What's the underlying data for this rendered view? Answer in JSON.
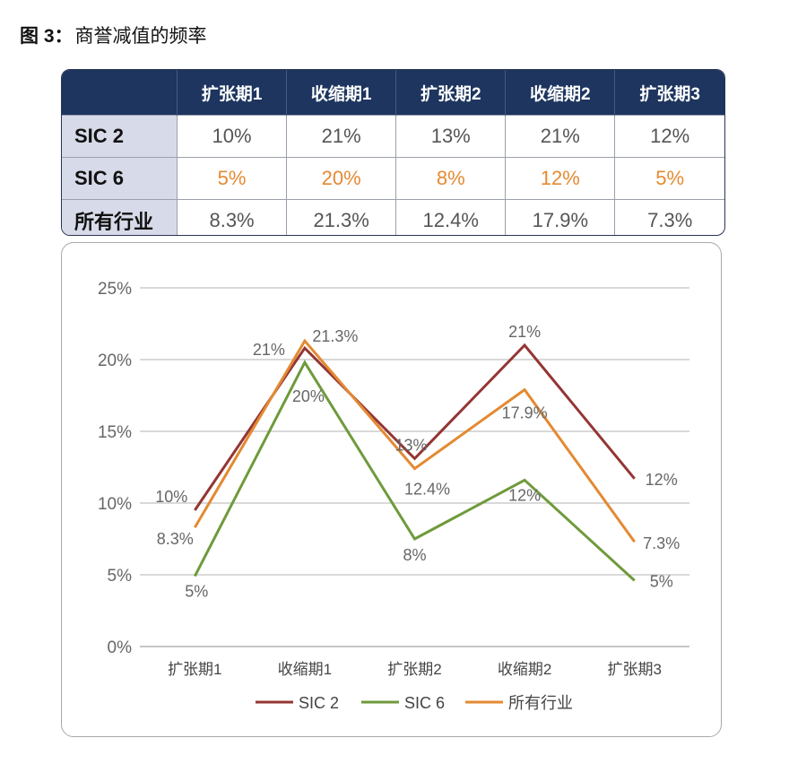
{
  "figure": {
    "title_prefix": "图 3：",
    "title_text": "商誉减值的频率"
  },
  "table": {
    "corner": "",
    "columns": [
      "扩张期1",
      "收缩期1",
      "扩张期2",
      "收缩期2",
      "扩张期3"
    ],
    "rows": [
      {
        "label": "SIC 2",
        "values": [
          "10%",
          "21%",
          "13%",
          "21%",
          "12%"
        ]
      },
      {
        "label": "SIC 6",
        "values": [
          "5%",
          "20%",
          "8%",
          "12%",
          "5%"
        ]
      },
      {
        "label": "所有行业",
        "values": [
          "8.3%",
          "21.3%",
          "12.4%",
          "17.9%",
          "7.3%"
        ]
      }
    ]
  },
  "chart_data": {
    "type": "line",
    "categories": [
      "扩张期1",
      "收缩期1",
      "扩张期2",
      "收缩期2",
      "扩张期3"
    ],
    "ylim": [
      0,
      25
    ],
    "yticks": [
      "0%",
      "5%",
      "10%",
      "15%",
      "20%",
      "25%"
    ],
    "grid": true,
    "legend_position": "bottom",
    "series": [
      {
        "name": "SIC 2",
        "color": "#943634",
        "values": [
          9.5,
          20.8,
          13.1,
          21.0,
          11.7
        ],
        "labels": [
          "10%",
          "21%",
          "13%",
          "21%",
          "12%"
        ]
      },
      {
        "name": "SIC 6",
        "color": "#6f9a3c",
        "values": [
          4.9,
          19.8,
          7.5,
          11.6,
          4.6
        ],
        "labels": [
          "5%",
          "20%",
          "8%",
          "12%",
          "5%"
        ]
      },
      {
        "name": "所有行业",
        "color": "#e38a32",
        "values": [
          8.3,
          21.3,
          12.4,
          17.9,
          7.3
        ],
        "labels": [
          "8.3%",
          "21.3%",
          "12.4%",
          "17.9%",
          "7.3%"
        ]
      }
    ]
  }
}
